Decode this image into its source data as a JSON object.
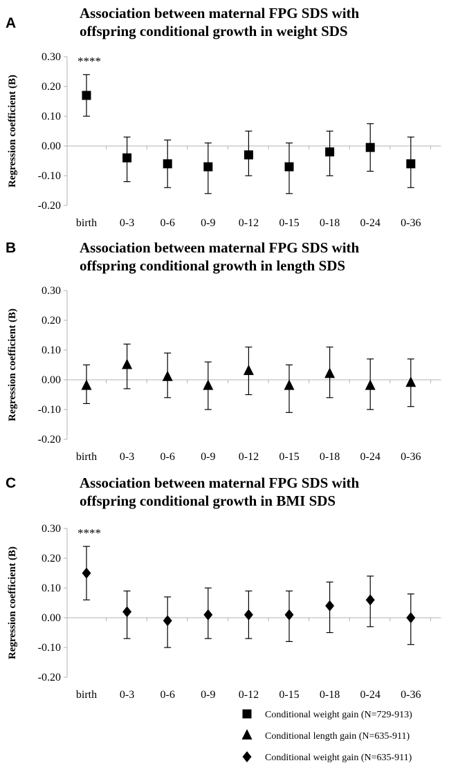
{
  "chart_data": [
    {
      "type": "scatter",
      "panel": "A",
      "title_lines": [
        "Association between maternal FPG SDS with",
        "offspring conditional growth in weight SDS"
      ],
      "ylabel": "Regression coefficient (B)",
      "xlabel": "",
      "ylim": [
        -0.2,
        0.3
      ],
      "yticks": [
        0.3,
        0.2,
        0.1,
        0.0,
        -0.1,
        -0.2
      ],
      "ytick_labels": [
        "0.30",
        "0.20",
        "0.10",
        "0.00",
        "-0.10",
        "-0.20"
      ],
      "categories": [
        "birth",
        "0-3",
        "0-6",
        "0-9",
        "0-12",
        "0-15",
        "0-18",
        "0-24",
        "0-36"
      ],
      "marker": "square",
      "values": [
        0.17,
        -0.04,
        -0.06,
        -0.07,
        -0.03,
        -0.07,
        -0.02,
        -0.005,
        -0.06
      ],
      "lower": [
        0.1,
        -0.12,
        -0.14,
        -0.16,
        -0.1,
        -0.16,
        -0.1,
        -0.085,
        -0.14
      ],
      "upper": [
        0.24,
        0.03,
        0.02,
        0.01,
        0.05,
        0.01,
        0.05,
        0.075,
        0.03
      ],
      "annotations": [
        {
          "category": "birth",
          "text": "****"
        }
      ],
      "grid": false
    },
    {
      "type": "scatter",
      "panel": "B",
      "title_lines": [
        "Association between maternal FPG SDS with",
        "offspring conditional growth in length SDS"
      ],
      "ylabel": "Regression coefficient (B)",
      "xlabel": "",
      "ylim": [
        -0.2,
        0.3
      ],
      "yticks": [
        0.3,
        0.2,
        0.1,
        0.0,
        -0.1,
        -0.2
      ],
      "ytick_labels": [
        "0.30",
        "0.20",
        "0.10",
        "0.00",
        "-0.10",
        "-0.20"
      ],
      "categories": [
        "birth",
        "0-3",
        "0-6",
        "0-9",
        "0-12",
        "0-15",
        "0-18",
        "0-24",
        "0-36"
      ],
      "marker": "triangle",
      "values": [
        -0.02,
        0.05,
        0.01,
        -0.02,
        0.03,
        -0.02,
        0.02,
        -0.02,
        -0.01
      ],
      "lower": [
        -0.08,
        -0.03,
        -0.06,
        -0.1,
        -0.05,
        -0.11,
        -0.06,
        -0.1,
        -0.09
      ],
      "upper": [
        0.05,
        0.12,
        0.09,
        0.06,
        0.11,
        0.05,
        0.11,
        0.07,
        0.07
      ],
      "annotations": [],
      "grid": false
    },
    {
      "type": "scatter",
      "panel": "C",
      "title_lines": [
        "Association between maternal FPG SDS with",
        "offspring conditional growth in BMI SDS"
      ],
      "ylabel": "Regression coefficient (B)",
      "xlabel": "",
      "ylim": [
        -0.2,
        0.3
      ],
      "yticks": [
        0.3,
        0.2,
        0.1,
        0.0,
        -0.1,
        -0.2
      ],
      "ytick_labels": [
        "0.30",
        "0.20",
        "0.10",
        "0.00",
        "-0.10",
        "-0.20"
      ],
      "categories": [
        "birth",
        "0-3",
        "0-6",
        "0-9",
        "0-12",
        "0-15",
        "0-18",
        "0-24",
        "0-36"
      ],
      "marker": "diamond",
      "values": [
        0.15,
        0.02,
        -0.01,
        0.01,
        0.01,
        0.01,
        0.04,
        0.06,
        0.0
      ],
      "lower": [
        0.06,
        -0.07,
        -0.1,
        -0.07,
        -0.07,
        -0.08,
        -0.05,
        -0.03,
        -0.09
      ],
      "upper": [
        0.24,
        0.09,
        0.07,
        0.1,
        0.09,
        0.09,
        0.12,
        0.14,
        0.08
      ],
      "annotations": [
        {
          "category": "birth",
          "text": "****"
        }
      ],
      "grid": false
    }
  ],
  "legend": {
    "position": "bottom-right",
    "items": [
      {
        "marker": "square",
        "label": "Conditional weight gain (N=729-913)"
      },
      {
        "marker": "triangle",
        "label": "Conditional length gain (N=635-911)"
      },
      {
        "marker": "diamond",
        "label": "Conditional weight gain (N=635-911)"
      }
    ]
  },
  "colors": {
    "marker": "#000000",
    "axis": "#b0b0b0",
    "background": "#ffffff"
  }
}
